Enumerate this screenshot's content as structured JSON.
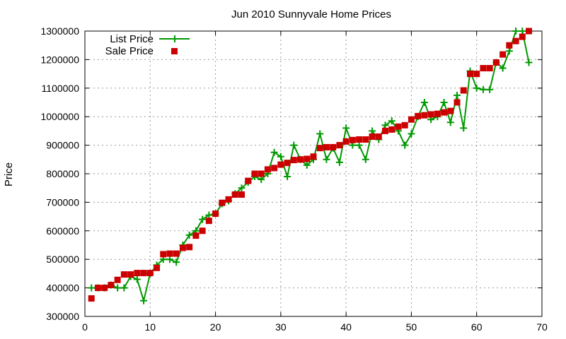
{
  "chart_data": {
    "type": "line",
    "title": "Jun 2010 Sunnyvale Home Prices",
    "xlabel": "",
    "ylabel": "Price",
    "xlim": [
      0,
      70
    ],
    "ylim": [
      300000,
      1300000
    ],
    "xticks": [
      0,
      10,
      20,
      30,
      40,
      50,
      60,
      70
    ],
    "yticks": [
      300000,
      400000,
      500000,
      600000,
      700000,
      800000,
      900000,
      1000000,
      1100000,
      1200000,
      1300000
    ],
    "grid": true,
    "legend_position": "top-left",
    "series": [
      {
        "name": "List Price",
        "style": "line-with-plus-markers",
        "color": "#009900",
        "x": [
          1,
          2,
          3,
          4,
          5,
          6,
          7,
          8,
          9,
          10,
          11,
          12,
          13,
          14,
          15,
          16,
          17,
          18,
          19,
          20,
          21,
          22,
          23,
          24,
          25,
          26,
          27,
          28,
          29,
          30,
          31,
          32,
          33,
          34,
          35,
          36,
          37,
          38,
          39,
          40,
          41,
          42,
          43,
          44,
          45,
          46,
          47,
          48,
          49,
          50,
          51,
          52,
          53,
          54,
          55,
          56,
          57,
          58,
          59,
          60,
          61,
          62,
          63,
          64,
          65,
          66,
          67,
          68
        ],
        "values": [
          400000,
          400000,
          400000,
          410000,
          400000,
          400000,
          440000,
          430000,
          355000,
          450000,
          480000,
          500000,
          500000,
          490000,
          550000,
          585000,
          600000,
          640000,
          655000,
          660000,
          695000,
          705000,
          730000,
          750000,
          770000,
          790000,
          780000,
          800000,
          875000,
          860000,
          790000,
          900000,
          850000,
          830000,
          850000,
          940000,
          850000,
          890000,
          840000,
          960000,
          900000,
          900000,
          850000,
          950000,
          920000,
          970000,
          985000,
          950000,
          900000,
          940000,
          1000000,
          1050000,
          990000,
          1000000,
          1050000,
          980000,
          1075000,
          960000,
          1160000,
          1100000,
          1095000,
          1095000,
          1190000,
          1170000,
          1230000,
          1300000,
          1300000,
          1190000
        ]
      },
      {
        "name": "Sale Price",
        "style": "square-markers",
        "color": "#cc0000",
        "x": [
          1,
          2,
          3,
          4,
          5,
          6,
          7,
          8,
          9,
          10,
          11,
          12,
          13,
          14,
          15,
          16,
          17,
          18,
          19,
          20,
          21,
          22,
          23,
          24,
          25,
          26,
          27,
          28,
          29,
          30,
          31,
          32,
          33,
          34,
          35,
          36,
          37,
          38,
          39,
          40,
          41,
          42,
          43,
          44,
          45,
          46,
          47,
          48,
          49,
          50,
          51,
          52,
          53,
          54,
          55,
          56,
          57,
          58,
          59,
          60,
          61,
          62,
          63,
          64,
          65,
          66,
          67,
          68
        ],
        "values": [
          363000,
          400000,
          400000,
          410000,
          428000,
          447000,
          447000,
          452000,
          452000,
          452000,
          470000,
          518000,
          520000,
          520000,
          540000,
          543000,
          583000,
          600000,
          635000,
          660000,
          698000,
          710000,
          727000,
          727000,
          775000,
          800000,
          800000,
          815000,
          820000,
          832000,
          838000,
          848000,
          850000,
          852000,
          860000,
          890000,
          893000,
          893000,
          900000,
          913000,
          918000,
          920000,
          920000,
          930000,
          930000,
          950000,
          955000,
          965000,
          970000,
          990000,
          1002000,
          1005000,
          1008000,
          1010000,
          1015000,
          1020000,
          1050000,
          1092000,
          1150000,
          1150000,
          1170000,
          1170000,
          1190000,
          1218000,
          1250000,
          1265000,
          1280000,
          1300000
        ]
      }
    ]
  }
}
